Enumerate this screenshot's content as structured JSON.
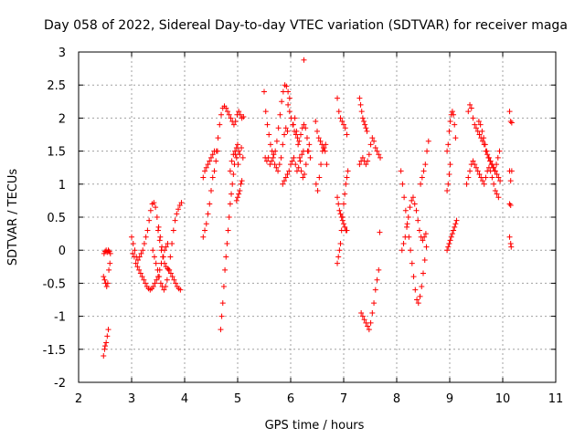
{
  "chart_data": {
    "type": "scatter",
    "title": "Day 058 of 2022, Sidereal Day-to-day VTEC variation (SDTVAR) for receiver maga",
    "xlabel": "GPS time / hours",
    "ylabel": "SDTVAR / TECUs",
    "xlim": [
      2,
      11
    ],
    "ylim": [
      -2,
      3
    ],
    "xticks": [
      2,
      3,
      4,
      5,
      6,
      7,
      8,
      9,
      10,
      11
    ],
    "yticks": [
      -2,
      -1.5,
      -1,
      -0.5,
      0,
      0.5,
      1,
      1.5,
      2,
      2.5,
      3
    ],
    "xtick_labels": [
      "2",
      "3",
      "4",
      "5",
      "6",
      "7",
      "8",
      "9",
      "10",
      "11"
    ],
    "ytick_labels": [
      "-2",
      "-1.5",
      "-1",
      "-0.5",
      "0",
      "0.5",
      "1",
      "1.5",
      "2",
      "2.5",
      "3"
    ],
    "grid": true,
    "marker": "+",
    "color": "#ff0000",
    "series": [
      {
        "name": "seg-2.5a",
        "x": [
          2.48,
          2.5,
          2.52,
          2.54,
          2.56,
          2.58,
          2.6
        ],
        "y": [
          -0.05,
          -0.02,
          0.0,
          -0.03,
          0.0,
          -0.02,
          -0.05
        ]
      },
      {
        "name": "seg-2.5b",
        "x": [
          2.47,
          2.49,
          2.51,
          2.53,
          2.55,
          2.57,
          2.59
        ],
        "y": [
          -0.4,
          -0.45,
          -0.5,
          -0.55,
          -0.5,
          -0.3,
          -0.2
        ]
      },
      {
        "name": "seg-2.5c",
        "x": [
          2.47,
          2.49,
          2.5,
          2.52,
          2.54,
          2.56
        ],
        "y": [
          -1.6,
          -1.5,
          -1.45,
          -1.4,
          -1.3,
          -1.2
        ]
      },
      {
        "name": "seg-3.0",
        "x": [
          3.0,
          3.03,
          3.06,
          3.09,
          3.12,
          3.15,
          3.18,
          3.21,
          3.24,
          3.27,
          3.3,
          3.33,
          3.36,
          3.39,
          3.42,
          3.45,
          3.48,
          3.51,
          3.54,
          3.57,
          3.6
        ],
        "y": [
          0.2,
          0.1,
          0.0,
          -0.1,
          -0.15,
          -0.1,
          -0.05,
          0.0,
          0.1,
          0.2,
          0.3,
          0.45,
          0.6,
          0.7,
          0.72,
          0.65,
          0.5,
          0.35,
          0.2,
          0.05,
          -0.1
        ]
      },
      {
        "name": "seg-3.0b",
        "x": [
          3.02,
          3.05,
          3.08,
          3.11,
          3.14,
          3.17,
          3.2,
          3.23,
          3.26,
          3.29,
          3.32,
          3.35,
          3.38,
          3.41,
          3.44,
          3.47,
          3.5,
          3.53,
          3.56,
          3.59,
          3.62,
          3.65,
          3.68
        ],
        "y": [
          -0.05,
          -0.1,
          -0.2,
          -0.25,
          -0.3,
          -0.35,
          -0.4,
          -0.45,
          -0.5,
          -0.55,
          -0.58,
          -0.6,
          -0.58,
          -0.55,
          -0.5,
          -0.45,
          -0.4,
          -0.3,
          -0.2,
          -0.1,
          0.0,
          0.05,
          0.1
        ]
      },
      {
        "name": "seg-3.5",
        "x": [
          3.4,
          3.43,
          3.46,
          3.49,
          3.52,
          3.55,
          3.58,
          3.61,
          3.64,
          3.67,
          3.7,
          3.73,
          3.76,
          3.79,
          3.82,
          3.85,
          3.88,
          3.91,
          3.94
        ],
        "y": [
          0.0,
          -0.1,
          -0.2,
          -0.3,
          -0.4,
          -0.5,
          -0.55,
          -0.6,
          -0.55,
          -0.45,
          -0.3,
          -0.1,
          0.1,
          0.3,
          0.45,
          0.55,
          0.62,
          0.68,
          0.72
        ]
      },
      {
        "name": "seg-3.6",
        "x": [
          3.5,
          3.53,
          3.56,
          3.59,
          3.62,
          3.65,
          3.68,
          3.71,
          3.74,
          3.77,
          3.8,
          3.83,
          3.86,
          3.89,
          3.92
        ],
        "y": [
          0.3,
          0.15,
          0.0,
          -0.1,
          -0.2,
          -0.25,
          -0.28,
          -0.3,
          -0.35,
          -0.4,
          -0.45,
          -0.5,
          -0.55,
          -0.58,
          -0.6
        ]
      },
      {
        "name": "seg-4.4",
        "x": [
          4.35,
          4.38,
          4.41,
          4.44,
          4.47,
          4.5,
          4.53,
          4.56,
          4.59,
          4.62
        ],
        "y": [
          0.2,
          0.3,
          0.4,
          0.55,
          0.7,
          0.9,
          1.1,
          1.2,
          1.35,
          1.5
        ]
      },
      {
        "name": "seg-4.4b",
        "x": [
          4.35,
          4.38,
          4.41,
          4.44,
          4.47,
          4.5,
          4.53,
          4.56
        ],
        "y": [
          1.1,
          1.2,
          1.25,
          1.3,
          1.35,
          1.4,
          1.45,
          1.5
        ]
      },
      {
        "name": "seg-4.7",
        "x": [
          4.6,
          4.63,
          4.66,
          4.69,
          4.72,
          4.75,
          4.78,
          4.81,
          4.84,
          4.87,
          4.9,
          4.93,
          4.96,
          4.99,
          5.02,
          5.05,
          5.08,
          5.11
        ],
        "y": [
          1.5,
          1.7,
          1.9,
          2.05,
          2.15,
          2.18,
          2.15,
          2.1,
          2.05,
          2.0,
          1.95,
          1.9,
          1.95,
          2.05,
          2.1,
          2.05,
          2.0,
          2.02
        ]
      },
      {
        "name": "seg-4.8",
        "x": [
          4.68,
          4.7,
          4.72,
          4.74,
          4.76,
          4.78,
          4.8,
          4.82,
          4.84,
          4.86,
          4.88,
          4.9,
          4.92,
          4.94,
          4.96,
          4.98,
          5.0,
          5.02
        ],
        "y": [
          -1.2,
          -1.0,
          -0.8,
          -0.55,
          -0.3,
          -0.1,
          0.1,
          0.3,
          0.5,
          0.7,
          0.85,
          1.0,
          1.15,
          1.3,
          1.45,
          1.55,
          1.6,
          1.5
        ]
      },
      {
        "name": "seg-4.9",
        "x": [
          4.86,
          4.89,
          4.92,
          4.95,
          4.98,
          5.01,
          5.04,
          5.07,
          5.1
        ],
        "y": [
          1.2,
          1.35,
          1.45,
          1.5,
          1.4,
          1.3,
          1.45,
          1.55,
          1.4
        ]
      },
      {
        "name": "seg-5.0",
        "x": [
          4.98,
          5.0,
          5.02,
          5.04,
          5.06,
          5.08
        ],
        "y": [
          0.75,
          0.8,
          0.85,
          0.9,
          1.0,
          1.05
        ]
      },
      {
        "name": "seg-5.6",
        "x": [
          5.5,
          5.53,
          5.56,
          5.59,
          5.62,
          5.65,
          5.68,
          5.71,
          5.74,
          5.77,
          5.8,
          5.83,
          5.86,
          5.89,
          5.92,
          5.95,
          5.98
        ],
        "y": [
          2.4,
          2.1,
          1.9,
          1.75,
          1.6,
          1.5,
          1.45,
          1.5,
          1.65,
          1.85,
          2.05,
          2.25,
          2.4,
          2.5,
          2.48,
          2.4,
          2.3
        ]
      },
      {
        "name": "seg-5.6b",
        "x": [
          5.52,
          5.55,
          5.58,
          5.61,
          5.64,
          5.67,
          5.7,
          5.73,
          5.76,
          5.79,
          5.82,
          5.85,
          5.88,
          5.91,
          5.94
        ],
        "y": [
          1.4,
          1.35,
          1.4,
          1.3,
          1.35,
          1.4,
          1.3,
          1.25,
          1.2,
          1.3,
          1.4,
          1.6,
          1.75,
          1.85,
          1.8
        ]
      },
      {
        "name": "seg-6.0",
        "x": [
          5.95,
          5.98,
          6.01,
          6.04,
          6.07,
          6.1,
          6.13,
          6.16,
          6.19,
          6.22,
          6.25,
          6.28,
          6.31,
          6.34,
          6.37
        ],
        "y": [
          2.2,
          2.1,
          2.0,
          1.9,
          1.8,
          1.75,
          1.7,
          1.65,
          1.75,
          1.85,
          1.9,
          1.85,
          1.7,
          1.5,
          1.4
        ]
      },
      {
        "name": "seg-6.0b",
        "x": [
          5.85,
          5.88,
          5.91,
          5.94,
          5.97,
          6.0,
          6.03,
          6.06,
          6.09,
          6.12,
          6.15,
          6.18,
          6.21,
          6.24
        ],
        "y": [
          1.0,
          1.05,
          1.1,
          1.15,
          1.2,
          1.3,
          1.35,
          1.4,
          1.3,
          1.2,
          1.25,
          1.35,
          1.45,
          1.5
        ]
      },
      {
        "name": "seg-6.2",
        "x": [
          6.05,
          6.08,
          6.11,
          6.14,
          6.17,
          6.2,
          6.23,
          6.26,
          6.29,
          6.32,
          6.35
        ],
        "y": [
          1.9,
          2.0,
          1.8,
          1.6,
          1.4,
          1.2,
          1.1,
          1.15,
          1.3,
          1.5,
          1.6
        ]
      },
      {
        "name": "outlier-6.25",
        "x": [
          6.25
        ],
        "y": [
          2.88
        ]
      },
      {
        "name": "seg-6.5",
        "x": [
          6.47,
          6.5,
          6.53,
          6.56,
          6.59,
          6.62,
          6.65,
          6.68
        ],
        "y": [
          1.95,
          1.8,
          1.7,
          1.65,
          1.6,
          1.55,
          1.5,
          1.3
        ]
      },
      {
        "name": "seg-6.5b",
        "x": [
          6.48,
          6.51,
          6.54,
          6.57,
          6.6,
          6.63,
          6.66
        ],
        "y": [
          1.0,
          0.9,
          1.1,
          1.3,
          1.5,
          1.55,
          1.6
        ]
      },
      {
        "name": "seg-6.9",
        "x": [
          6.88,
          6.9,
          6.92,
          6.94,
          6.96,
          6.98,
          7.0,
          7.02,
          7.04,
          7.06,
          7.08
        ],
        "y": [
          -0.2,
          -0.1,
          0.0,
          0.1,
          0.3,
          0.5,
          0.7,
          0.85,
          1.0,
          1.1,
          1.2
        ]
      },
      {
        "name": "seg-6.9b",
        "x": [
          6.88,
          6.9,
          6.92,
          6.94,
          6.96,
          6.98,
          7.0,
          7.02,
          7.04,
          7.06
        ],
        "y": [
          0.8,
          0.7,
          0.6,
          0.55,
          0.5,
          0.45,
          0.4,
          0.35,
          0.3,
          0.3
        ]
      },
      {
        "name": "seg-6.95",
        "x": [
          6.88,
          6.91,
          6.94,
          6.97,
          7.0,
          7.03,
          7.06
        ],
        "y": [
          2.3,
          2.1,
          2.0,
          1.95,
          1.9,
          1.85,
          1.75
        ]
      },
      {
        "name": "seg-7.3",
        "x": [
          7.3,
          7.32,
          7.34,
          7.36,
          7.38,
          7.4,
          7.42,
          7.44
        ],
        "y": [
          2.3,
          2.2,
          2.1,
          2.0,
          1.95,
          1.9,
          1.85,
          1.8
        ]
      },
      {
        "name": "seg-7.3b",
        "x": [
          7.3,
          7.33,
          7.36,
          7.39,
          7.42,
          7.45,
          7.48,
          7.51,
          7.54,
          7.57,
          7.6,
          7.63,
          7.66,
          7.69
        ],
        "y": [
          1.3,
          1.35,
          1.4,
          1.35,
          1.3,
          1.35,
          1.45,
          1.6,
          1.7,
          1.65,
          1.55,
          1.5,
          1.45,
          1.4
        ]
      },
      {
        "name": "seg-7.4",
        "x": [
          7.33,
          7.36,
          7.39,
          7.42,
          7.45,
          7.48,
          7.51,
          7.54,
          7.57,
          7.6,
          7.63,
          7.66
        ],
        "y": [
          -0.95,
          -1.0,
          -1.05,
          -1.1,
          -1.15,
          -1.2,
          -1.1,
          -0.95,
          -0.8,
          -0.6,
          -0.45,
          -0.3
        ]
      },
      {
        "name": "seg-7.65",
        "x": [
          7.68
        ],
        "y": [
          0.27
        ]
      },
      {
        "name": "seg-8.1",
        "x": [
          8.08,
          8.11,
          8.14,
          8.17,
          8.2,
          8.23,
          8.26,
          8.29,
          8.32,
          8.35,
          8.38,
          8.41,
          8.44,
          8.47,
          8.5,
          8.53,
          8.56
        ],
        "y": [
          1.2,
          1.0,
          0.8,
          0.6,
          0.4,
          0.2,
          0.0,
          -0.2,
          -0.4,
          -0.6,
          -0.75,
          -0.8,
          -0.7,
          -0.55,
          -0.35,
          -0.15,
          0.05
        ]
      },
      {
        "name": "seg-8.1b",
        "x": [
          8.1,
          8.13,
          8.16,
          8.19,
          8.22,
          8.25,
          8.28,
          8.31,
          8.34,
          8.37,
          8.4,
          8.43,
          8.46,
          8.49,
          8.52,
          8.55
        ],
        "y": [
          0.0,
          0.1,
          0.2,
          0.35,
          0.5,
          0.65,
          0.75,
          0.8,
          0.7,
          0.6,
          0.45,
          0.3,
          0.2,
          0.15,
          0.2,
          0.25
        ]
      },
      {
        "name": "seg-8.5",
        "x": [
          8.45,
          8.48,
          8.51,
          8.54,
          8.57,
          8.6
        ],
        "y": [
          1.0,
          1.1,
          1.2,
          1.3,
          1.5,
          1.65
        ]
      },
      {
        "name": "seg-9.0",
        "x": [
          8.95,
          8.97,
          8.99,
          9.01,
          9.03,
          9.05,
          9.07,
          9.09,
          9.11,
          9.13
        ],
        "y": [
          0.0,
          0.05,
          0.1,
          0.15,
          0.2,
          0.25,
          0.3,
          0.35,
          0.4,
          0.45
        ]
      },
      {
        "name": "seg-9.0b",
        "x": [
          8.95,
          8.97,
          8.99,
          9.01,
          9.03,
          9.05,
          9.07,
          9.09,
          9.11
        ],
        "y": [
          1.5,
          1.6,
          1.8,
          1.95,
          2.05,
          2.1,
          2.05,
          1.9,
          1.7
        ]
      },
      {
        "name": "seg-9.0c",
        "x": [
          8.95,
          8.97,
          8.99,
          9.01
        ],
        "y": [
          0.9,
          1.0,
          1.15,
          1.3
        ]
      },
      {
        "name": "seg-9.4",
        "x": [
          9.35,
          9.38,
          9.41,
          9.44,
          9.47,
          9.5,
          9.53,
          9.56,
          9.59,
          9.62,
          9.65,
          9.68,
          9.71,
          9.74,
          9.77,
          9.8,
          9.83,
          9.86,
          9.89,
          9.92,
          9.95
        ],
        "y": [
          2.1,
          2.2,
          2.15,
          2.0,
          1.9,
          1.85,
          1.8,
          1.75,
          1.7,
          1.65,
          1.6,
          1.5,
          1.45,
          1.4,
          1.35,
          1.3,
          1.25,
          1.2,
          1.15,
          1.1,
          1.05
        ]
      },
      {
        "name": "seg-9.4b",
        "x": [
          9.32,
          9.35,
          9.38,
          9.41,
          9.44,
          9.47,
          9.5,
          9.53,
          9.56,
          9.59,
          9.62,
          9.65,
          9.68,
          9.71,
          9.74,
          9.77,
          9.8,
          9.83,
          9.86,
          9.89,
          9.92
        ],
        "y": [
          1.0,
          1.1,
          1.2,
          1.3,
          1.35,
          1.3,
          1.25,
          1.2,
          1.15,
          1.1,
          1.05,
          1.0,
          1.1,
          1.2,
          1.25,
          1.2,
          1.1,
          1.0,
          0.9,
          0.85,
          0.8
        ]
      },
      {
        "name": "seg-9.6",
        "x": [
          9.55,
          9.58,
          9.61,
          9.64,
          9.67,
          9.7,
          9.73,
          9.76,
          9.79,
          9.82,
          9.85,
          9.88,
          9.91,
          9.94
        ],
        "y": [
          1.95,
          1.9,
          1.8,
          1.7,
          1.6,
          1.5,
          1.4,
          1.35,
          1.3,
          1.25,
          1.2,
          1.3,
          1.4,
          1.5
        ]
      },
      {
        "name": "seg-10.1",
        "x": [
          10.13,
          10.15,
          10.17
        ],
        "y": [
          2.1,
          1.95,
          1.93
        ]
      },
      {
        "name": "seg-10.1b",
        "x": [
          10.13,
          10.15,
          10.17
        ],
        "y": [
          1.2,
          1.05,
          1.2
        ]
      },
      {
        "name": "seg-10.1c",
        "x": [
          10.13,
          10.15
        ],
        "y": [
          0.7,
          0.68
        ]
      },
      {
        "name": "seg-10.1d",
        "x": [
          10.13,
          10.15,
          10.16
        ],
        "y": [
          0.2,
          0.1,
          0.05
        ]
      }
    ]
  }
}
